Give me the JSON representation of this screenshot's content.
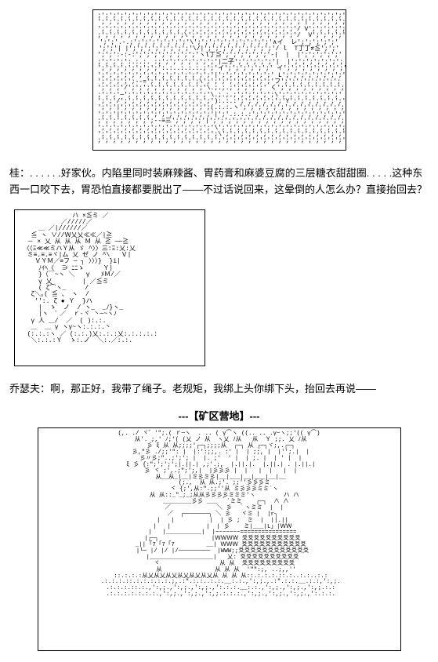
{
  "dialogue1": {
    "speaker": "桂",
    "text": "好家伙。内陷里同时装麻辣酱、胃药膏和麻婆豆腐的三层糖衣甜甜圈",
    "ellipsis_lead": ". . . . . .",
    "ellipsis_trail": ". . . . .",
    "text2": "这种东西一口咬下去，胃恐怕直接都要脱出了——不过话说回来，这晕倒的人怎么办？直接抬回去？"
  },
  "dialogue2": {
    "speaker": "乔瑟夫",
    "text": "啊，那正好，我带了绳子。老规矩，我绑上头你绑下头，抬回去再说——"
  },
  "scene": {
    "divider_l": "---【",
    "label": "矿区营地",
    "divider_r": "】---"
  },
  "ascii": {
    "panel1": ";';';';';';';';';';';';';';';';';';';';';';';';';';';';';';';';';'\n';';';';';';';';';';';';';';';';';';';';';';';';';';';'|';';';';';'\n';';';';';';';';';';';';';';';';';';';';';';';';';';'/ V';';';';';\n;';';';';';';';';';';';\\';';';';';';';';';';';';';';'/  V';';';';'\n';';'.-.;';';';';';';';'\\';';';';';';';';';';'∧イ  レ';';';';';'\n';';'| |';';';';';';';';'\\/|';';';';';';';';';'/ l  T丁丁≠≦';';'\n';';':-:-:';';';';';';';';'ヽl丁≦';';';';';';'-|  |  |';';';';';'\n;';';';':.:.:. :;';';';';';';';'|二子';';';';';'|  |';';';';';';';\n';';';';';';';';':.:..:.:.:.;';'イ';';';';';';' イ';';';';';';';';'\n';';';';';';';';';';';';';';';'|';';';';';';';' L';';';';';';';';'\n';';';';';-‐=';';';';';';';\\';';';';';';';';';'フ';';';';';';';';\n';';';'/';';';';';';';';';';'\\.;.;.;';';';';' く';';';';';';';';';\n;';';'─';';';';';';';';';';';'\\.;.;.;';';';';';\\';';';';';';';';'\n';';'/';';';';';';';';';';';';'):.:.:';';';';';';'Y';';';';';';';'\n';';'|';';';';';';';';';';';';(.:.:.ヽ';';';';';';';';';';';';';';'\n';';'|';';';';';';';';';';';';'|';'.:.:.:';';';';';';';';';';';';';\n;';';';';';';';-‐≡三';';';';'|';';';';';';';';';';';';';';';';';';\n';';';';';';';';';';';';';';';'\\';';';';';';';';';';';';';';';';';'\n';';';';';';';';';';';';';';';';\\';';';';';';';';';';';';';';';';';\n;';';';';';';';';';';';';';';';';';';';';';';';';';';';';';';';';'",
    "panel2": "              ハ ×≦ミ ／\n           ／/////／\n     ＿ ／|//////／\n   ≦ ヽ ∨//Ｗ乂乂≪≪／|≧\n  － × 乂 从 从 从 Ｍ 从 ≧ ──≧\n 〈〈Ξ≪≪ミハＹ从 ゞ ^〉〉三:Ξ:乂:乂\n  ミ≡.≡.≡ヾ|ム 乂 ゼ ノ ^\\   Ｖ|\n    ＶＹＭ／≡フ ─ ┐ 〉〉〉}  }i|\n     ﾉｲﾍ〈  ∋ ﾆﾆゝ     Ｙ|\n     }（￣~ヽ ＼   γ   ﾒＭ/／\n     γ 乂        | ／≦ミ\n     ( ζ⌒ヽ_     /\n   ζ＼｡( ≦ 、 ヽ  /\n    '':. ζ ● Ｙ  }ハ\n     |  ゝ  ノ  / ヽ_  _ﾉ}ヽ_\n     |ヽ  ̄ ／  ｒ‐ヾ 丶─~ヽﾉ\n   γ 人 ＿/  ／  ( ):.:.\n   ＿  ＿ γ ヽγ~ヽ:.:.:.丶\n  (:.:.:ヽ ／ (:.:.)乂:.:.:乂:.:.:.:.:\n   ＼:.:.:Ｙ  ゝ:.ノ  ＼:.／:.:.",
    "panel3": "(,. ./ ヾ゛'\";.( ｒ─ヽ  . .. ( γ⌒ヽ ((.. .. .γ~ヽ;;'(( γ⌒)\n 从'. ;,' ﾉ;'( (乂 ノ 从  ヽ乂 ﾉ从   从  Ｙ ;;. 乂 ﾉ从\n 彡 ξ 从 从;;;;'┌─┐;;;;从  ┌─┐ 从 ┌─┐ヾ;,.┌─┐\n 彡,\"彡 ./;;'\": |  |:':;;,. :' |  | ;;, |  |'';.|  |\n 彡〃彡;\"..;';'; |  |. ;'  ' |  | ;. |  | ' |  |\n ξ 彡 {:\";';';';|.||.| ,;'.;,  |.||.|.  |.||.| . |.||.|\n 彡 ヾ ;',.;\";';,|  |彡彡彡 |  |   |  |   |  |\n 从__从_|__|ミ彡ミ彡|__|___|__|___|__|__\n   (;.,  从 从.;'. ;;''彡彡彡ミ\n   ヾ {;',从:\".;;''从 ミ彡彡彡ミミ`ヽ\n   从 从::_\"_;_;从从彡彡彡彡ミミミ'ヽ        ハ ハ\n    ________彡彡 ___ ｀`ミミ    ┌─┐  ∧ ∧\n   ／             ＼ 彡  ｀ヽミミ  |  |\n  ／  ┌───────┐ ＼ 彡   ヾミ |  |r┐\n  |   |          |  | 彡 ;  ミ  |  ||.||\n  |   |          |  | 彡    ミ|___|L」|ＷＷ\n  |   |__________|  |~~~~~~~================\n  |┌─┐               |ＷＷＷＷ 爻爻爻爻爻爻爻爻爻爻\n _|| ｢7「7「7         __| ＷＷＷ 爻爻爻爻爻爻爻爻爻爻爻\n  |└─ |/ |/ |/─────────  |WWW;;爻爻爻爻爻爻爻爻爻爻爻爻\n  |__________________|   乂: 爻爻爻爻爻爻爻爻爻爻\n   ヾ                 从 从  爻爻爻爻爻爻爻爻爻\n    从               从 从 从  '\"\":;, ..;,,''\n ::.:.:.:从乂从乂从乂从乂从乂从乂从 从 从 从::.:.:.:.::.:..:.:..:.:\n .:.:.:.::.:.:.:.:.:.;,.:\".:.:..:.:.__:.:.,':,;.,.:\".:.:.__.:.:,':,;.\n .:.:.:.::.:.,':,;.,':,;.,':,;.,':.:.:.__:.:.,':,;.,':,;.,':,;.:.:\n .:.:.:.:.:.:.:.,':,;.,':,;.,':,;.:.:.:.,':,;.,':,;.,':,;.,':.:.:."
  }
}
